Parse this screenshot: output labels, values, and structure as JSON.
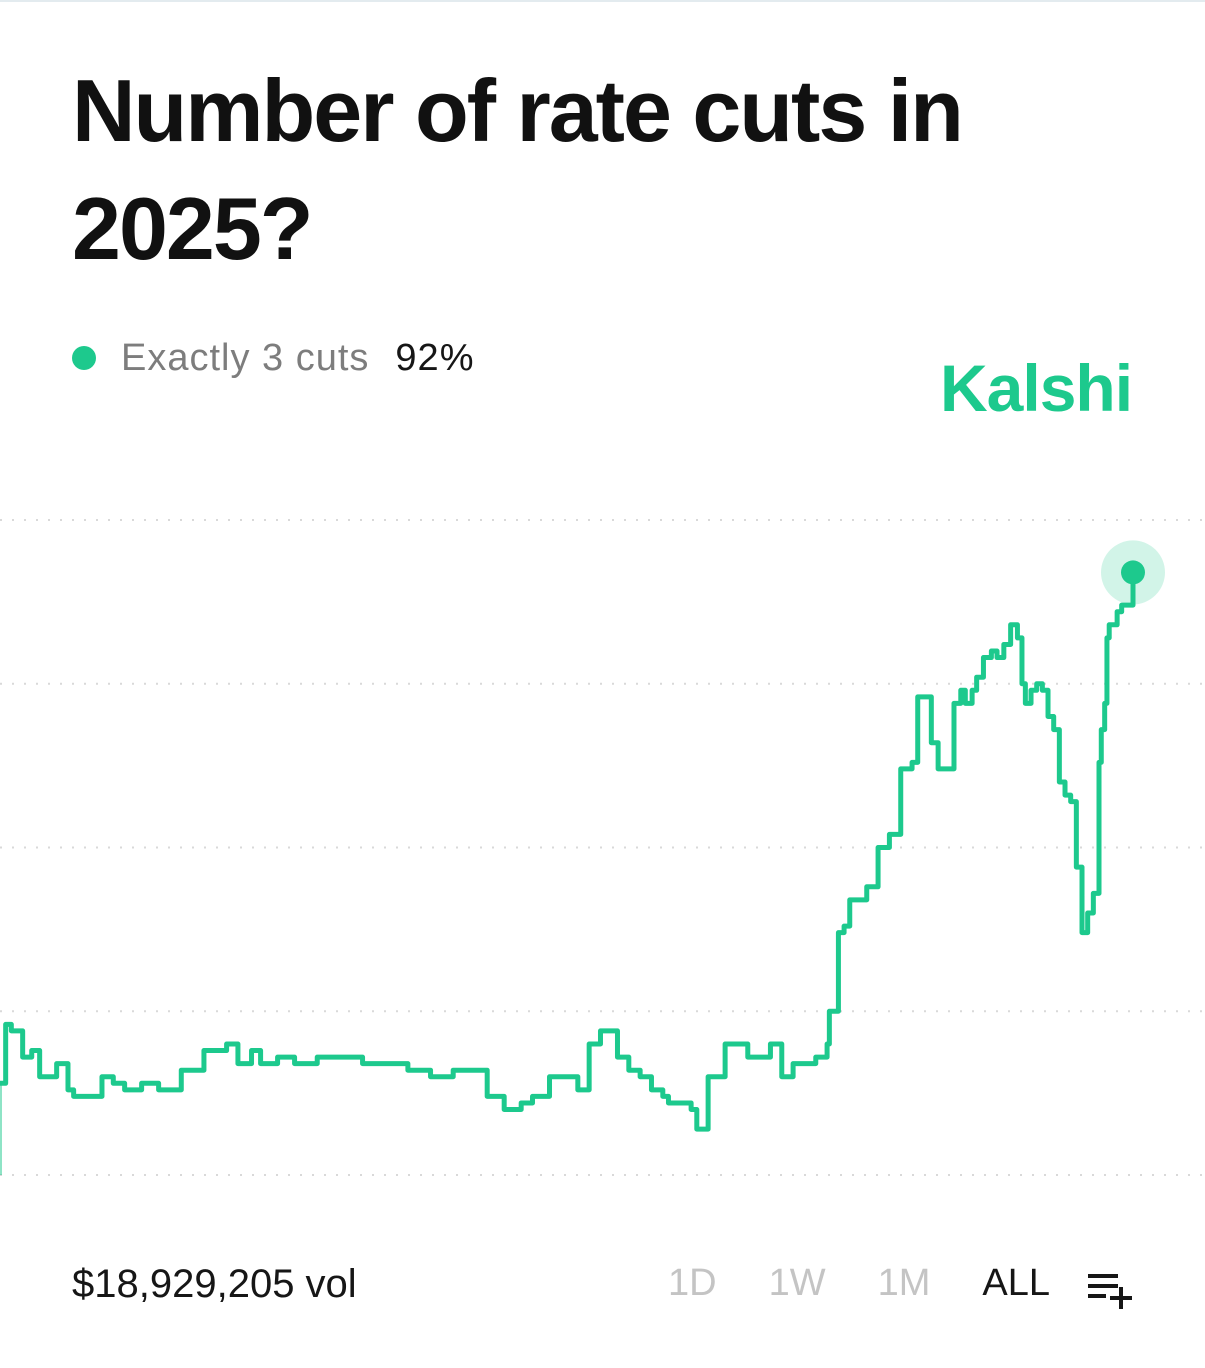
{
  "title": "Number of rate cuts in 2025?",
  "brand": "Kalshi",
  "colors": {
    "accent": "#1dc98d",
    "text": "#161616",
    "muted": "#7d7d7d",
    "tab_inactive": "#c4c4c4",
    "grid": "#d9d9d9"
  },
  "legend": {
    "label": "Exactly 3 cuts",
    "value": "92%"
  },
  "footer": {
    "volume": "$18,929,205 vol",
    "ranges": [
      "1D",
      "1W",
      "1M",
      "ALL"
    ],
    "active_range": "ALL",
    "add_icon": "playlist-add-icon"
  },
  "chart_data": {
    "type": "line",
    "series": [
      {
        "name": "Exactly 3 cuts",
        "x": [
          0,
          0.005,
          0.01,
          0.02,
          0.028,
          0.035,
          0.05,
          0.06,
          0.065,
          0.09,
          0.1,
          0.11,
          0.125,
          0.14,
          0.16,
          0.18,
          0.2,
          0.21,
          0.222,
          0.23,
          0.245,
          0.26,
          0.272,
          0.28,
          0.3,
          0.32,
          0.34,
          0.36,
          0.38,
          0.4,
          0.43,
          0.445,
          0.46,
          0.47,
          0.485,
          0.5,
          0.51,
          0.52,
          0.53,
          0.545,
          0.555,
          0.565,
          0.575,
          0.585,
          0.59,
          0.6,
          0.61,
          0.615,
          0.625,
          0.64,
          0.66,
          0.68,
          0.69,
          0.7,
          0.72,
          0.73,
          0.732,
          0.74,
          0.745,
          0.75,
          0.765,
          0.775,
          0.785,
          0.795,
          0.805,
          0.81,
          0.818,
          0.822,
          0.828,
          0.835,
          0.842,
          0.848,
          0.852,
          0.858,
          0.862,
          0.868,
          0.875,
          0.88,
          0.886,
          0.892,
          0.898,
          0.902,
          0.905,
          0.908,
          0.91,
          0.915,
          0.92,
          0.925,
          0.93,
          0.935,
          0.94,
          0.945,
          0.95,
          0.955,
          0.96,
          0.965,
          0.97,
          0.972,
          0.975,
          0.977,
          0.979,
          0.982,
          0.986,
          0.99,
          1.0
        ],
        "values": [
          0.14,
          0.23,
          0.22,
          0.18,
          0.19,
          0.15,
          0.17,
          0.13,
          0.12,
          0.15,
          0.14,
          0.13,
          0.14,
          0.13,
          0.16,
          0.19,
          0.2,
          0.17,
          0.19,
          0.17,
          0.18,
          0.17,
          0.17,
          0.18,
          0.18,
          0.17,
          0.17,
          0.16,
          0.15,
          0.16,
          0.12,
          0.1,
          0.11,
          0.12,
          0.15,
          0.15,
          0.13,
          0.2,
          0.22,
          0.18,
          0.16,
          0.15,
          0.13,
          0.12,
          0.11,
          0.11,
          0.1,
          0.07,
          0.15,
          0.2,
          0.18,
          0.2,
          0.15,
          0.17,
          0.18,
          0.2,
          0.25,
          0.37,
          0.38,
          0.42,
          0.44,
          0.5,
          0.52,
          0.62,
          0.63,
          0.73,
          0.73,
          0.66,
          0.62,
          0.62,
          0.72,
          0.74,
          0.72,
          0.74,
          0.76,
          0.79,
          0.8,
          0.79,
          0.81,
          0.84,
          0.82,
          0.75,
          0.72,
          0.72,
          0.74,
          0.75,
          0.74,
          0.7,
          0.68,
          0.6,
          0.58,
          0.57,
          0.47,
          0.37,
          0.4,
          0.43,
          0.63,
          0.68,
          0.72,
          0.82,
          0.84,
          0.84,
          0.86,
          0.87,
          0.92
        ]
      }
    ],
    "ylim": [
      0,
      1
    ],
    "grid": true,
    "markers": [
      "last-point"
    ],
    "legend_position": "top-left"
  }
}
